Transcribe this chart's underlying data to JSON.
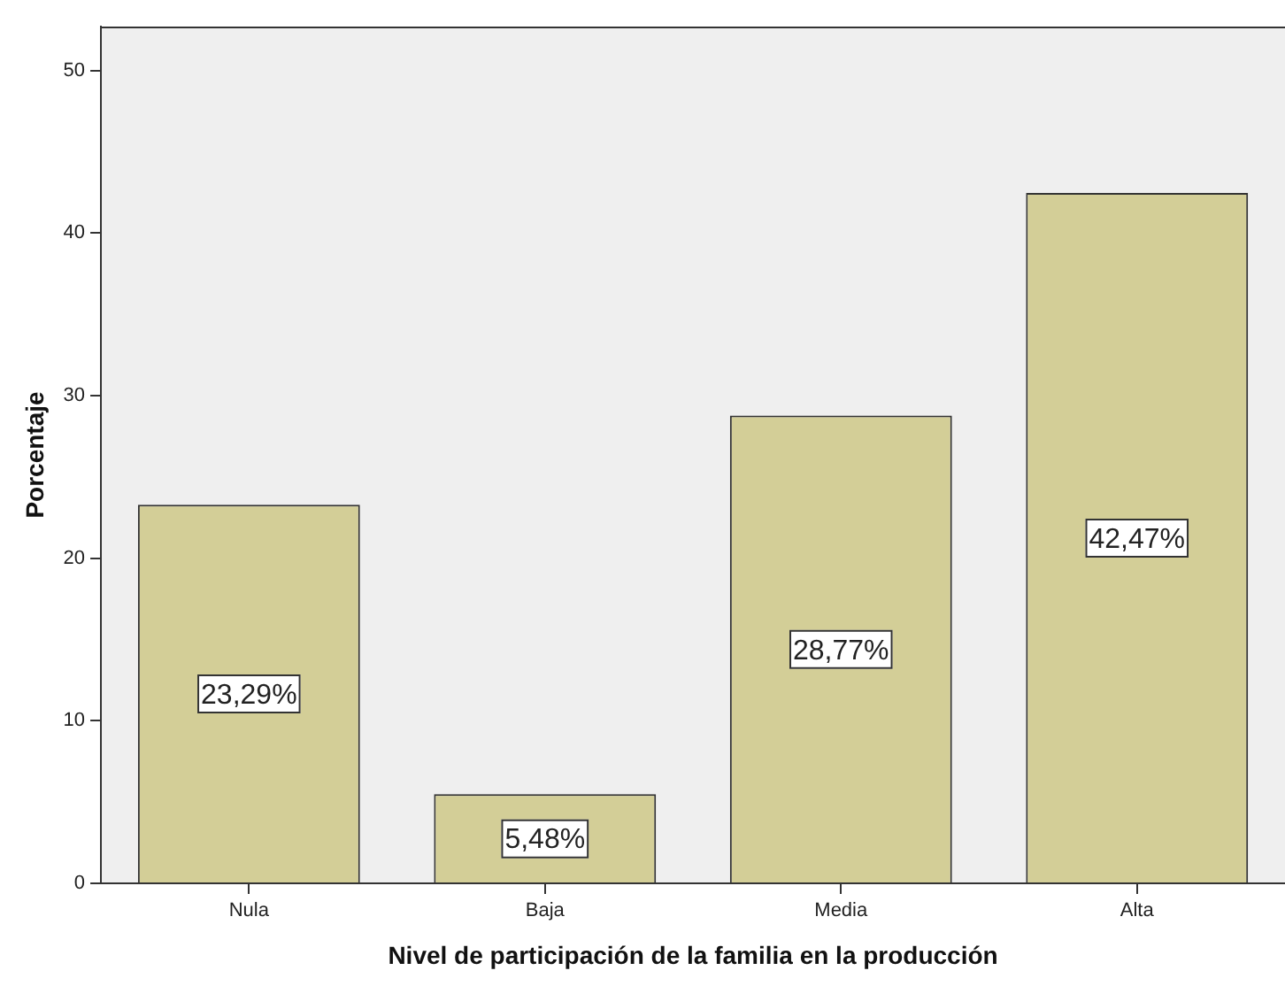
{
  "chart_data": {
    "type": "bar",
    "xlabel": "Nivel de participación de la familia en la producción",
    "ylabel": "Porcentaje",
    "categories": [
      "Nula",
      "Baja",
      "Media",
      "Alta"
    ],
    "values": [
      23.29,
      5.48,
      28.77,
      42.47
    ],
    "value_labels": [
      "23,29%",
      "5,48%",
      "28,77%",
      "42,47%"
    ],
    "color": "#d3ce97",
    "ylim": [
      0,
      52.7
    ],
    "yticks": [
      0,
      10,
      20,
      30,
      40,
      50
    ],
    "grid": false,
    "legend": false
  }
}
